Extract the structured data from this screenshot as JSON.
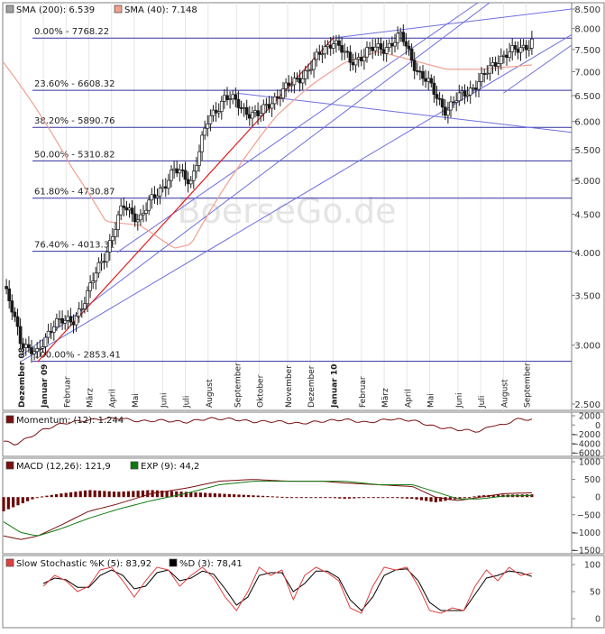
{
  "chart_data": [
    {
      "type": "candlestick",
      "panel": "price",
      "legend": [
        {
          "label": "SMA (200): 6.539",
          "color": "#a0a0a0"
        },
        {
          "label": "SMA (40): 7.148",
          "color": "#f0a090"
        }
      ],
      "watermark": "BoerseGo.de",
      "y_ticks": [
        "2.500",
        "3.000",
        "3.500",
        "4.000",
        "4.500",
        "5.000",
        "5.500",
        "6.000",
        "6.500",
        "7.000",
        "7.500",
        "8.000",
        "8.500"
      ],
      "y_scale": "log",
      "ylim": [
        2500,
        8500
      ],
      "x_labels": [
        {
          "text": "Dezember 08",
          "bold": true,
          "t": 0.03
        },
        {
          "text": "Januar 09",
          "bold": true,
          "t": 0.07
        },
        {
          "text": "Februar",
          "bold": false,
          "t": 0.11
        },
        {
          "text": "März",
          "bold": false,
          "t": 0.15
        },
        {
          "text": "April",
          "bold": false,
          "t": 0.19
        },
        {
          "text": "Mai",
          "bold": false,
          "t": 0.23
        },
        {
          "text": "Juni",
          "bold": false,
          "t": 0.28
        },
        {
          "text": "Juli",
          "bold": false,
          "t": 0.32
        },
        {
          "text": "August",
          "bold": false,
          "t": 0.36
        },
        {
          "text": "September",
          "bold": false,
          "t": 0.41
        },
        {
          "text": "Oktober",
          "bold": false,
          "t": 0.45
        },
        {
          "text": "November",
          "bold": false,
          "t": 0.5
        },
        {
          "text": "Dezember",
          "bold": false,
          "t": 0.54
        },
        {
          "text": "Januar 10",
          "bold": true,
          "t": 0.58
        },
        {
          "text": "Februar",
          "bold": false,
          "t": 0.63
        },
        {
          "text": "März",
          "bold": false,
          "t": 0.67
        },
        {
          "text": "April",
          "bold": false,
          "t": 0.71
        },
        {
          "text": "Mai",
          "bold": false,
          "t": 0.75
        },
        {
          "text": "Juni",
          "bold": false,
          "t": 0.8
        },
        {
          "text": "Juli",
          "bold": false,
          "t": 0.84
        },
        {
          "text": "August",
          "bold": false,
          "t": 0.88
        },
        {
          "text": "September",
          "bold": false,
          "t": 0.92
        }
      ],
      "fib_levels": [
        {
          "label": "0.00% - 7768.22",
          "value": 7768.22
        },
        {
          "label": "23.60% - 6608.32",
          "value": 6608.32
        },
        {
          "label": "38.20% - 5890.76",
          "value": 5890.76
        },
        {
          "label": "50.00% - 5310.82",
          "value": 5310.82
        },
        {
          "label": "61.80% - 4730.87",
          "value": 4730.87
        },
        {
          "label": "76.40% - 4013.31",
          "value": 4013.31
        },
        {
          "label": "100.00% - 2853.41",
          "value": 2853.41
        }
      ],
      "colors": {
        "up": "#ffffff",
        "down": "#1a1a1a",
        "wick": "#1a1a1a",
        "sma200": "#a0a0a0",
        "sma40": "#f0a090",
        "fib": "#3030a0",
        "trend_blue": "#6f6fe0",
        "trend_red": "#e02020"
      },
      "trend_lines_blue": [
        {
          "t": [
            0.03,
            1.0
          ],
          "v": [
            2900,
            10500
          ]
        },
        {
          "t": [
            0.2,
            1.0
          ],
          "v": [
            4000,
            10600
          ]
        },
        {
          "t": [
            0.03,
            1.0
          ],
          "v": [
            2850,
            7850
          ]
        },
        {
          "t": [
            0.41,
            1.0
          ],
          "v": [
            6550,
            5800
          ]
        },
        {
          "t": [
            0.58,
            1.0
          ],
          "v": [
            7770,
            8500
          ]
        },
        {
          "t": [
            0.88,
            1.0
          ],
          "v": [
            6550,
            7600
          ]
        }
      ],
      "trend_lines_red": [
        {
          "t": [
            0.06,
            0.58
          ],
          "v": [
            2850,
            7768
          ]
        }
      ],
      "close_anchors": {
        "t": [
          0.0,
          0.03,
          0.06,
          0.09,
          0.12,
          0.15,
          0.18,
          0.21,
          0.24,
          0.27,
          0.3,
          0.33,
          0.36,
          0.39,
          0.42,
          0.45,
          0.48,
          0.51,
          0.54,
          0.58,
          0.61,
          0.64,
          0.67,
          0.7,
          0.73,
          0.75,
          0.78,
          0.81,
          0.84,
          0.87,
          0.9,
          0.93
        ],
        "v": [
          3600,
          3050,
          2900,
          3250,
          3200,
          3550,
          4000,
          4600,
          4450,
          4800,
          5150,
          5000,
          6000,
          6500,
          6250,
          6100,
          6500,
          6750,
          7100,
          7750,
          7200,
          7450,
          7550,
          7800,
          7000,
          6700,
          6200,
          6550,
          6800,
          7300,
          7450,
          7700
        ]
      },
      "sma40_anchors": {
        "t": [
          0.0,
          0.06,
          0.12,
          0.18,
          0.24,
          0.3,
          0.33,
          0.36,
          0.42,
          0.48,
          0.54,
          0.6,
          0.66,
          0.72,
          0.78,
          0.84,
          0.93
        ],
        "v": [
          7200,
          6200,
          5200,
          4400,
          4350,
          4050,
          4100,
          4500,
          5300,
          6100,
          6700,
          7200,
          7450,
          7250,
          7050,
          7050,
          7148
        ]
      }
    },
    {
      "type": "line",
      "panel": "momentum",
      "legend": [
        {
          "label": "Momentum: (12): 1.244",
          "color": "#7a1010"
        }
      ],
      "y_ticks": [
        "2000",
        "0",
        "−2000",
        "−4000",
        "−6000"
      ],
      "ylim": [
        -6000,
        2000
      ],
      "series": {
        "t": [
          0.0,
          0.02,
          0.04,
          0.07,
          0.1,
          0.13,
          0.16,
          0.2,
          0.24,
          0.28,
          0.32,
          0.36,
          0.4,
          0.44,
          0.48,
          0.52,
          0.56,
          0.6,
          0.64,
          0.68,
          0.72,
          0.76,
          0.8,
          0.84,
          0.86,
          0.88,
          0.9,
          0.93
        ],
        "v": [
          -3500,
          -4200,
          -3000,
          -1000,
          200,
          800,
          1200,
          1500,
          800,
          1000,
          600,
          1400,
          1300,
          700,
          800,
          300,
          800,
          1200,
          500,
          1300,
          1000,
          -400,
          -1000,
          -1400,
          0,
          -100,
          1200,
          1244
        ]
      },
      "color": "#7a1010"
    },
    {
      "type": "bar+line",
      "panel": "macd",
      "legend": [
        {
          "label": "MACD (12,26): 121,9",
          "color": "#7a1010"
        },
        {
          "label": "EXP (9): 44,2",
          "color": "#107a10"
        }
      ],
      "y_ticks": [
        "1000",
        "500",
        "0",
        "−500",
        "−1000",
        "−1500"
      ],
      "ylim": [
        -1500,
        1000
      ],
      "macd": {
        "t": [
          0.0,
          0.03,
          0.06,
          0.1,
          0.15,
          0.2,
          0.26,
          0.32,
          0.38,
          0.44,
          0.5,
          0.56,
          0.6,
          0.66,
          0.72,
          0.76,
          0.8,
          0.84,
          0.88,
          0.93
        ],
        "v": [
          -1100,
          -1200,
          -1100,
          -800,
          -400,
          -200,
          100,
          250,
          450,
          500,
          450,
          450,
          400,
          350,
          300,
          0,
          -100,
          0,
          100,
          122
        ]
      },
      "signal": {
        "t": [
          0.0,
          0.03,
          0.06,
          0.1,
          0.15,
          0.2,
          0.26,
          0.32,
          0.38,
          0.44,
          0.5,
          0.56,
          0.6,
          0.66,
          0.72,
          0.76,
          0.8,
          0.84,
          0.88,
          0.93
        ],
        "v": [
          -700,
          -1000,
          -1100,
          -900,
          -600,
          -350,
          -100,
          100,
          350,
          450,
          450,
          450,
          450,
          350,
          350,
          150,
          -50,
          -50,
          30,
          44
        ]
      },
      "colors": {
        "bars": "#6a0808",
        "macd": "#7a1010",
        "signal": "#107a10"
      }
    },
    {
      "type": "line",
      "panel": "stochastic",
      "legend": [
        {
          "label": "Slow Stochastic %K (5): 83,92",
          "color": "#e04040"
        },
        {
          "label": "%D (3): 78,41",
          "color": "#000000"
        }
      ],
      "y_ticks": [
        "100",
        "50",
        "0"
      ],
      "ylim": [
        0,
        100
      ],
      "k": {
        "t": [
          0.07,
          0.09,
          0.11,
          0.13,
          0.15,
          0.17,
          0.19,
          0.21,
          0.23,
          0.25,
          0.27,
          0.29,
          0.31,
          0.33,
          0.35,
          0.37,
          0.39,
          0.41,
          0.43,
          0.45,
          0.47,
          0.49,
          0.51,
          0.53,
          0.55,
          0.57,
          0.59,
          0.61,
          0.63,
          0.65,
          0.67,
          0.69,
          0.71,
          0.73,
          0.75,
          0.77,
          0.79,
          0.81,
          0.83,
          0.85,
          0.87,
          0.89,
          0.91,
          0.93
        ],
        "v": [
          60,
          80,
          70,
          50,
          60,
          90,
          95,
          70,
          40,
          70,
          95,
          90,
          60,
          80,
          95,
          75,
          40,
          15,
          50,
          95,
          80,
          90,
          35,
          80,
          95,
          85,
          70,
          20,
          10,
          60,
          95,
          90,
          95,
          60,
          15,
          10,
          20,
          15,
          60,
          90,
          70,
          95,
          80,
          84
        ]
      },
      "d": {
        "t": [
          0.07,
          0.09,
          0.11,
          0.13,
          0.15,
          0.17,
          0.19,
          0.21,
          0.23,
          0.25,
          0.27,
          0.29,
          0.31,
          0.33,
          0.35,
          0.37,
          0.39,
          0.41,
          0.43,
          0.45,
          0.47,
          0.49,
          0.51,
          0.53,
          0.55,
          0.57,
          0.59,
          0.61,
          0.63,
          0.65,
          0.67,
          0.69,
          0.71,
          0.73,
          0.75,
          0.77,
          0.79,
          0.81,
          0.83,
          0.85,
          0.87,
          0.89,
          0.91,
          0.93
        ],
        "v": [
          65,
          75,
          72,
          58,
          58,
          80,
          90,
          80,
          55,
          60,
          85,
          90,
          70,
          75,
          88,
          82,
          55,
          25,
          40,
          80,
          85,
          85,
          50,
          65,
          88,
          88,
          75,
          35,
          15,
          40,
          80,
          90,
          92,
          70,
          30,
          15,
          15,
          15,
          45,
          75,
          80,
          88,
          85,
          78
        ]
      },
      "colors": {
        "k": "#e04040",
        "d": "#000000"
      }
    }
  ]
}
